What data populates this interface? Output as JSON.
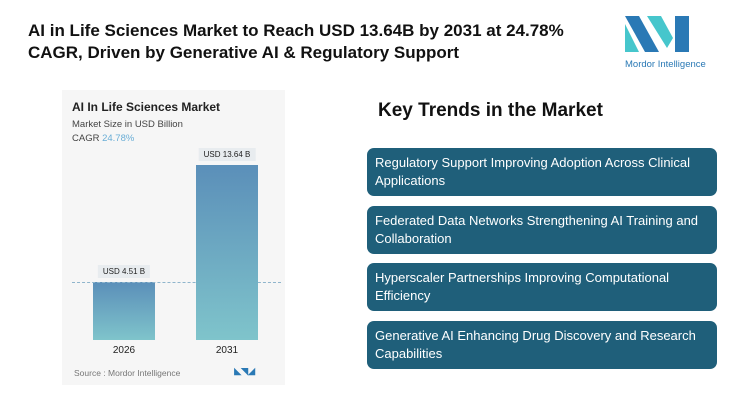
{
  "title": "AI in Life Sciences Market to Reach USD 13.64B by 2031 at 24.78% CAGR, Driven by Generative AI & Regulatory Support",
  "logo": {
    "text": "Mordor Intelligence"
  },
  "chart_data": {
    "type": "bar",
    "title": "AI In Life Sciences Market",
    "subtitle": "Market Size in USD Billion",
    "cagr_label": "CAGR",
    "cagr_value": "24.78%",
    "categories": [
      "2026",
      "2031"
    ],
    "values": [
      4.51,
      13.64
    ],
    "data_labels": [
      "USD 4.51 B",
      "USD 13.64 B"
    ],
    "colors": [
      "#5b8fb9",
      "#7fc4cb"
    ],
    "source": "Source : Mordor Intelligence"
  },
  "key_trends": {
    "heading": "Key Trends in the Market",
    "items": [
      "Regulatory Support Improving Adoption Across Clinical Applications",
      "Federated Data Networks Strengthening AI Training and Collaboration",
      "Hyperscaler Partnerships Improving Computational Efficiency",
      "Generative AI Enhancing Drug Discovery and Research Capabilities"
    ]
  }
}
